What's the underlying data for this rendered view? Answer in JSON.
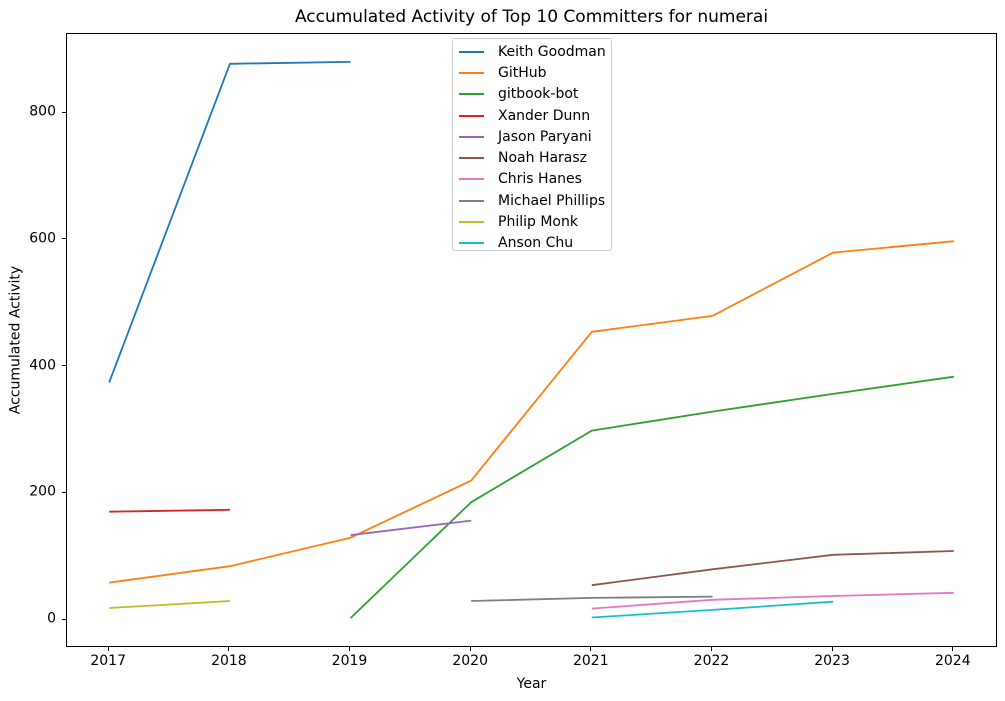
{
  "figure": {
    "title": "Accumulated Activity of Top 10 Committers for numerai",
    "xlabel": "Year",
    "ylabel": "Accumulated Activity"
  },
  "chart_data": {
    "type": "line",
    "title": "Accumulated Activity of Top 10 Committers for numerai",
    "xlabel": "Year",
    "ylabel": "Accumulated Activity",
    "x_ticks": [
      "2017",
      "2018",
      "2019",
      "2020",
      "2021",
      "2022",
      "2023",
      "2024"
    ],
    "x_tick_values": [
      2017,
      2018,
      2019,
      2020,
      2021,
      2022,
      2023,
      2024
    ],
    "y_ticks": [
      "0",
      "200",
      "400",
      "600",
      "800"
    ],
    "y_tick_values": [
      0,
      200,
      400,
      600,
      800
    ],
    "xlim": [
      2016.65,
      2024.35
    ],
    "ylim": [
      -41,
      925
    ],
    "grid": false,
    "legend_position": "upper center",
    "axis_color": "#000000",
    "background_color": "#ffffff",
    "series": [
      {
        "name": "Keith Goodman",
        "color": "#1f77b4",
        "points": [
          [
            2017,
            375
          ],
          [
            2018,
            878
          ],
          [
            2019,
            881
          ]
        ]
      },
      {
        "name": "GitHub",
        "color": "#ff7f0e",
        "points": [
          [
            2017,
            59
          ],
          [
            2018,
            85
          ],
          [
            2019,
            130
          ],
          [
            2020,
            220
          ],
          [
            2021,
            455
          ],
          [
            2022,
            480
          ],
          [
            2023,
            580
          ],
          [
            2024,
            598
          ]
        ]
      },
      {
        "name": "gitbook-bot",
        "color": "#2ca02c",
        "points": [
          [
            2019,
            3
          ],
          [
            2020,
            186
          ],
          [
            2021,
            299
          ],
          [
            2022,
            329
          ],
          [
            2023,
            357
          ],
          [
            2024,
            384
          ]
        ]
      },
      {
        "name": "Xander Dunn",
        "color": "#d62728",
        "points": [
          [
            2017,
            171
          ],
          [
            2018,
            174
          ]
        ]
      },
      {
        "name": "Jason Paryani",
        "color": "#9467bd",
        "points": [
          [
            2019,
            134
          ],
          [
            2020,
            157
          ]
        ]
      },
      {
        "name": "Noah Harasz",
        "color": "#8c564b",
        "points": [
          [
            2021,
            55
          ],
          [
            2022,
            80
          ],
          [
            2023,
            103
          ],
          [
            2024,
            109
          ]
        ]
      },
      {
        "name": "Chris Hanes",
        "color": "#e377c2",
        "points": [
          [
            2021,
            18
          ],
          [
            2022,
            32
          ],
          [
            2023,
            38
          ],
          [
            2024,
            43
          ]
        ]
      },
      {
        "name": "Michael Phillips",
        "color": "#7f7f7f",
        "points": [
          [
            2020,
            30
          ],
          [
            2021,
            35
          ],
          [
            2022,
            37
          ]
        ]
      },
      {
        "name": "Philip Monk",
        "color": "#bcbd22",
        "points": [
          [
            2017,
            19
          ],
          [
            2018,
            30
          ]
        ]
      },
      {
        "name": "Anson Chu",
        "color": "#17becf",
        "points": [
          [
            2021,
            4
          ],
          [
            2022,
            16
          ],
          [
            2023,
            29
          ]
        ]
      }
    ]
  }
}
